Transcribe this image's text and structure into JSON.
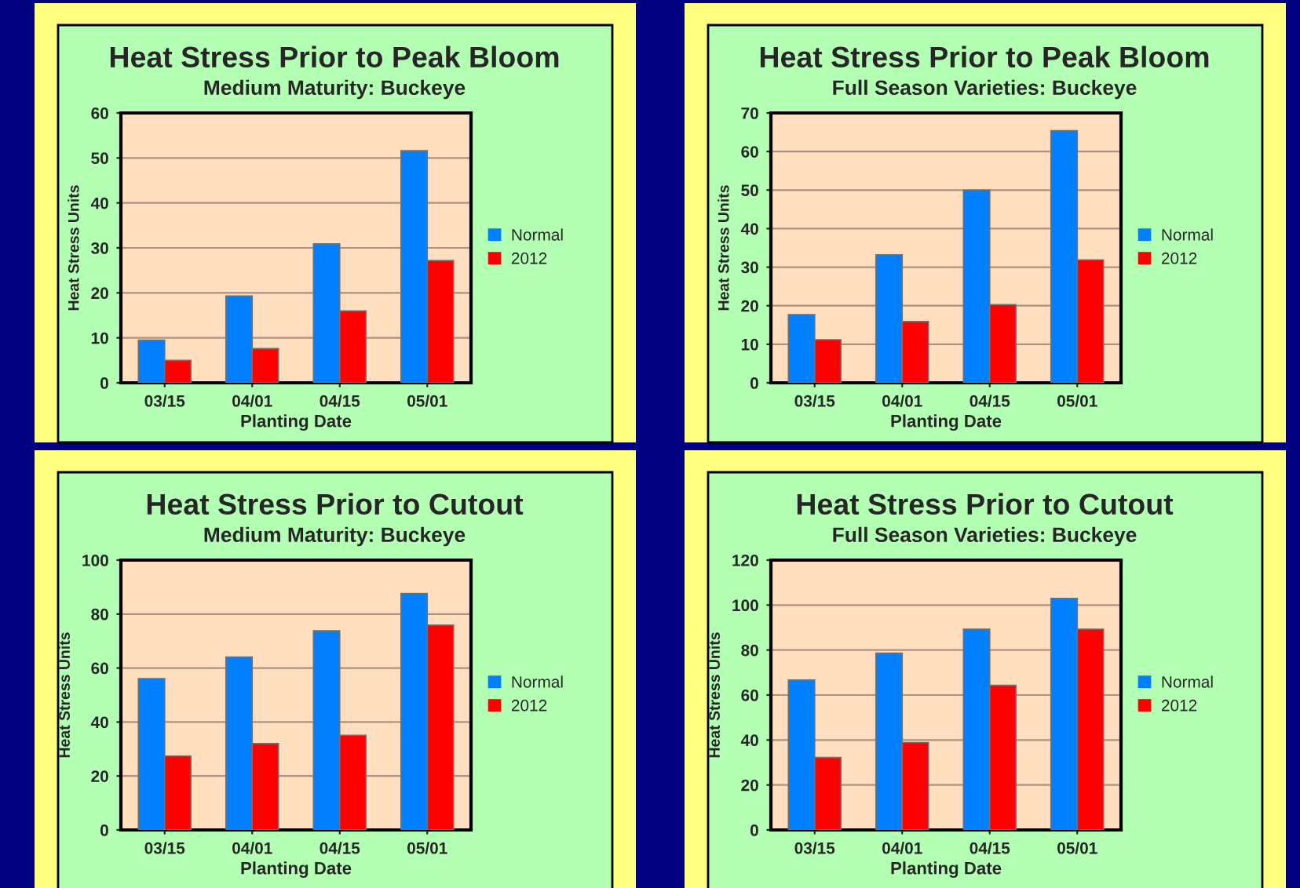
{
  "chart_data": [
    {
      "type": "bar",
      "title": "Heat Stress Prior to Peak Bloom",
      "subtitle": "Medium Maturity: Buckeye",
      "xlabel": "Planting Date",
      "ylabel": "Heat Stress Units",
      "categories": [
        "03/15",
        "04/01",
        "04/15",
        "05/01"
      ],
      "series": [
        {
          "name": "Normal",
          "color": "#0080ff",
          "values": [
            9.5,
            19.3,
            30.9,
            51.6
          ]
        },
        {
          "name": "2012",
          "color": "#ff0000",
          "values": [
            5.0,
            7.6,
            16.0,
            27.2
          ]
        }
      ],
      "ylim": [
        0,
        60
      ],
      "yticks": [
        0,
        10,
        20,
        30,
        40,
        50,
        60
      ],
      "grid": "y",
      "legend": "right"
    },
    {
      "type": "bar",
      "title": "Heat Stress Prior to Peak Bloom",
      "subtitle": "Full Season Varieties: Buckeye",
      "xlabel": "Planting Date",
      "ylabel": "Heat Stress Units",
      "categories": [
        "03/15",
        "04/01",
        "04/15",
        "05/01"
      ],
      "series": [
        {
          "name": "Normal",
          "color": "#0080ff",
          "values": [
            17.7,
            33.2,
            50.0,
            65.4
          ]
        },
        {
          "name": "2012",
          "color": "#ff0000",
          "values": [
            11.2,
            15.9,
            20.3,
            31.9
          ]
        }
      ],
      "ylim": [
        0,
        70
      ],
      "yticks": [
        0,
        10,
        20,
        30,
        40,
        50,
        60,
        70
      ],
      "grid": "y",
      "legend": "right"
    },
    {
      "type": "bar",
      "title": "Heat Stress Prior to Cutout",
      "subtitle": "Medium Maturity: Buckeye",
      "xlabel": "Planting Date",
      "ylabel": "Heat Stress Units",
      "categories": [
        "03/15",
        "04/01",
        "04/15",
        "05/01"
      ],
      "series": [
        {
          "name": "Normal",
          "color": "#0080ff",
          "values": [
            56.1,
            64.1,
            73.8,
            87.6
          ]
        },
        {
          "name": "2012",
          "color": "#ff0000",
          "values": [
            27.4,
            32.0,
            35.1,
            75.9
          ]
        }
      ],
      "ylim": [
        0,
        100
      ],
      "yticks": [
        0,
        20,
        40,
        60,
        80,
        100
      ],
      "grid": "y",
      "legend": "right"
    },
    {
      "type": "bar",
      "title": "Heat Stress Prior to Cutout",
      "subtitle": "Full Season Varieties: Buckeye",
      "xlabel": "Planting Date",
      "ylabel": "Heat Stress Units",
      "categories": [
        "03/15",
        "04/01",
        "04/15",
        "05/01"
      ],
      "series": [
        {
          "name": "Normal",
          "color": "#0080ff",
          "values": [
            66.7,
            78.6,
            89.3,
            103.0
          ]
        },
        {
          "name": "2012",
          "color": "#ff0000",
          "values": [
            32.2,
            38.9,
            64.3,
            89.3
          ]
        }
      ],
      "ylim": [
        0,
        120
      ],
      "yticks": [
        0,
        20,
        40,
        60,
        80,
        100,
        120
      ],
      "grid": "y",
      "legend": "right"
    }
  ]
}
